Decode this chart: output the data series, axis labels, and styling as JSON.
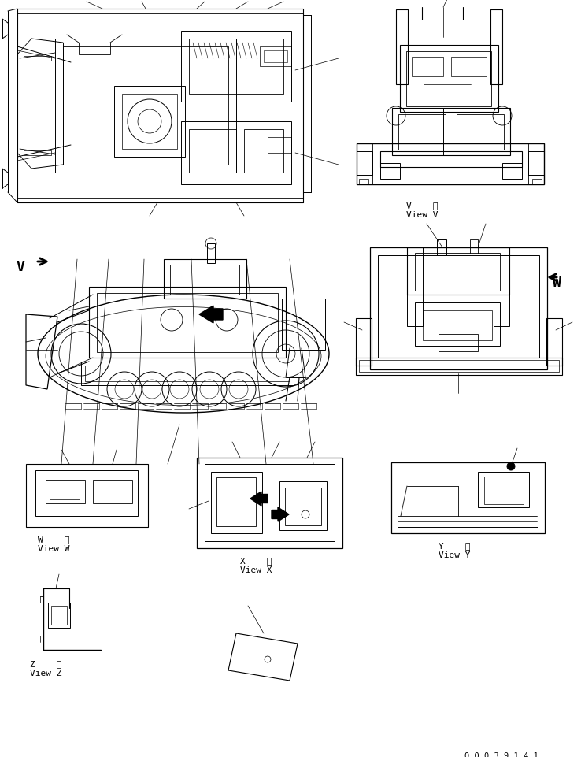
{
  "background_color": "#ffffff",
  "text_color": "#000000",
  "line_color": "#000000",
  "fig_width": 7.38,
  "fig_height": 9.62,
  "dpi": 100,
  "labels": {
    "view_v_kanji": "V    視",
    "view_v": "View V",
    "view_w_kanji": "W    視",
    "view_w": "View W",
    "view_x_kanji": "X    視",
    "view_x": "View X",
    "view_y_kanji": "Y    視",
    "view_y": "View Y",
    "view_z_kanji": "Z    視",
    "view_z": "View Z",
    "part_number": "0 0 0 3 9 1 4 1",
    "V_arrow": "V",
    "W_arrow": "W"
  }
}
